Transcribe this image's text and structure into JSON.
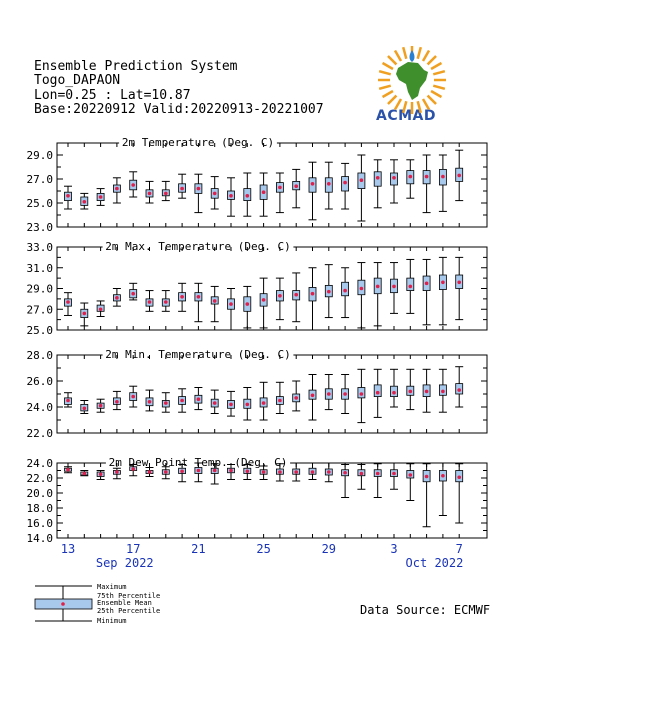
{
  "header": {
    "line1": "Ensemble Prediction System",
    "line2": "Togo_DAPAON",
    "line3": "Lon=0.25 : Lat=10.87",
    "line4": "Base:20220912 Valid:20220913-20221007"
  },
  "logo": {
    "text": "ACMAD",
    "icon": "africa-sun-logo-icon"
  },
  "source": "Data Source: ECMWF",
  "legend": {
    "maximum": "Maximum",
    "p75": "75th Percentile",
    "mean": "Ensemble Mean",
    "p25": "25th Percentile",
    "minimum": "Minimum"
  },
  "colors": {
    "box": "#a8c8ec",
    "mean": "#e0204a",
    "axis": "#000000",
    "date": "#1a34b8"
  },
  "x_axis": {
    "ticks": [
      {
        "day": 1,
        "label": "13"
      },
      {
        "day": 5,
        "label": "17"
      },
      {
        "day": 9,
        "label": "21"
      },
      {
        "day": 13,
        "label": "25"
      },
      {
        "day": 17,
        "label": "29"
      },
      {
        "day": 21,
        "label": "3"
      },
      {
        "day": 25,
        "label": "7"
      }
    ],
    "months": [
      {
        "day": 3.5,
        "label": "Sep 2022"
      },
      {
        "day": 22.5,
        "label": "Oct 2022"
      }
    ]
  },
  "chart_data": [
    {
      "type": "boxplot",
      "title": "2m Temperature (Deg. C)",
      "ylim": [
        23.0,
        30.0
      ],
      "yticks": [
        "23.0",
        "25.0",
        "27.0",
        "29.0"
      ],
      "x": [
        "2022-09-13",
        "2022-09-14",
        "2022-09-15",
        "2022-09-16",
        "2022-09-17",
        "2022-09-18",
        "2022-09-19",
        "2022-09-20",
        "2022-09-21",
        "2022-09-22",
        "2022-09-23",
        "2022-09-24",
        "2022-09-25",
        "2022-09-26",
        "2022-09-27",
        "2022-09-28",
        "2022-09-29",
        "2022-09-30",
        "2022-10-01",
        "2022-10-02",
        "2022-10-03",
        "2022-10-04",
        "2022-10-05",
        "2022-10-06",
        "2022-10-07"
      ],
      "min": [
        24.5,
        24.5,
        24.8,
        25.0,
        25.5,
        25.0,
        25.2,
        25.4,
        24.2,
        24.5,
        23.9,
        23.9,
        23.9,
        24.2,
        24.6,
        23.6,
        24.5,
        24.5,
        23.5,
        24.6,
        25.0,
        25.4,
        24.2,
        24.3,
        25.2
      ],
      "p25": [
        25.2,
        24.8,
        25.2,
        25.9,
        26.1,
        25.5,
        25.6,
        25.9,
        25.8,
        25.4,
        25.3,
        25.2,
        25.3,
        25.9,
        26.1,
        25.9,
        25.9,
        26.0,
        26.2,
        26.4,
        26.5,
        26.6,
        26.6,
        26.5,
        26.8
      ],
      "mean": [
        25.6,
        25.1,
        25.5,
        26.2,
        26.5,
        25.8,
        25.8,
        26.2,
        26.2,
        25.8,
        25.6,
        25.6,
        25.9,
        26.3,
        26.4,
        26.6,
        26.6,
        26.7,
        26.9,
        27.1,
        27.1,
        27.2,
        27.2,
        27.2,
        27.3
      ],
      "p75": [
        25.9,
        25.5,
        25.8,
        26.5,
        26.9,
        26.1,
        26.1,
        26.6,
        26.6,
        26.2,
        26.0,
        26.2,
        26.5,
        26.7,
        26.8,
        27.1,
        27.1,
        27.2,
        27.5,
        27.6,
        27.5,
        27.7,
        27.7,
        27.8,
        27.9
      ],
      "max": [
        26.4,
        25.8,
        26.2,
        27.1,
        27.6,
        26.8,
        26.8,
        27.4,
        27.4,
        27.2,
        27.1,
        27.5,
        27.5,
        27.5,
        27.8,
        28.4,
        28.4,
        28.3,
        29.0,
        28.6,
        28.6,
        28.6,
        29.0,
        29.0,
        29.4
      ]
    },
    {
      "type": "boxplot",
      "title": "2m Max. Temperature (Deg. C)",
      "ylim": [
        25.0,
        33.0
      ],
      "yticks": [
        "25.0",
        "27.0",
        "29.0",
        "31.0",
        "33.0"
      ],
      "min": [
        26.4,
        25.4,
        26.3,
        27.3,
        27.9,
        26.8,
        26.8,
        26.8,
        25.8,
        25.8,
        25.0,
        25.2,
        25.2,
        26.0,
        25.8,
        25.0,
        26.2,
        26.2,
        25.2,
        25.4,
        26.6,
        26.6,
        25.5,
        25.5,
        26.0
      ],
      "p25": [
        27.3,
        26.2,
        26.8,
        27.8,
        28.1,
        27.3,
        27.3,
        27.8,
        27.8,
        27.5,
        27.0,
        26.8,
        27.3,
        27.8,
        27.9,
        27.8,
        28.2,
        28.3,
        28.4,
        28.5,
        28.6,
        28.8,
        28.8,
        28.9,
        29.0
      ],
      "mean": [
        27.7,
        26.6,
        27.0,
        28.1,
        28.5,
        27.7,
        27.7,
        28.2,
        28.2,
        27.8,
        27.5,
        27.5,
        27.9,
        28.3,
        28.4,
        28.5,
        28.7,
        28.8,
        29.0,
        29.2,
        29.2,
        29.2,
        29.5,
        29.6,
        29.6
      ],
      "p75": [
        28.0,
        27.0,
        27.4,
        28.4,
        28.9,
        28.0,
        28.0,
        28.6,
        28.6,
        28.2,
        28.0,
        28.2,
        28.5,
        28.8,
        28.8,
        29.1,
        29.3,
        29.6,
        29.8,
        30.0,
        29.9,
        30.0,
        30.2,
        30.3,
        30.3
      ],
      "max": [
        28.6,
        27.6,
        27.8,
        29.0,
        29.5,
        28.8,
        28.8,
        29.5,
        29.5,
        29.2,
        29.0,
        29.2,
        30.0,
        30.0,
        30.5,
        31.0,
        31.3,
        31.0,
        31.5,
        31.5,
        31.5,
        31.8,
        31.8,
        32.0,
        32.0
      ]
    },
    {
      "type": "boxplot",
      "title": "2m Min. Temperature (Deg. C)",
      "ylim": [
        22.0,
        28.0
      ],
      "yticks": [
        "22.0",
        "24.0",
        "26.0",
        "28.0"
      ],
      "min": [
        24.0,
        23.5,
        23.6,
        23.8,
        24.0,
        23.7,
        23.6,
        23.6,
        23.8,
        23.5,
        23.3,
        23.0,
        23.0,
        23.5,
        23.7,
        23.0,
        23.8,
        23.5,
        22.8,
        23.2,
        24.0,
        23.8,
        23.6,
        23.6,
        24.0
      ],
      "p25": [
        24.2,
        23.7,
        23.9,
        24.2,
        24.5,
        24.1,
        24.0,
        24.2,
        24.3,
        24.0,
        23.9,
        23.9,
        24.0,
        24.2,
        24.4,
        24.6,
        24.6,
        24.6,
        24.7,
        24.8,
        24.8,
        24.9,
        24.8,
        24.9,
        25.0
      ],
      "mean": [
        24.5,
        23.9,
        24.1,
        24.4,
        24.8,
        24.4,
        24.3,
        24.5,
        24.6,
        24.3,
        24.2,
        24.2,
        24.3,
        24.5,
        24.7,
        24.9,
        25.0,
        25.0,
        25.0,
        25.1,
        25.1,
        25.2,
        25.2,
        25.2,
        25.3
      ],
      "p75": [
        24.7,
        24.2,
        24.3,
        24.7,
        25.1,
        24.7,
        24.5,
        24.8,
        24.9,
        24.6,
        24.5,
        24.6,
        24.7,
        24.8,
        25.0,
        25.3,
        25.4,
        25.4,
        25.5,
        25.7,
        25.6,
        25.6,
        25.7,
        25.7,
        25.8
      ],
      "max": [
        25.1,
        24.5,
        24.6,
        25.2,
        25.6,
        25.3,
        25.1,
        25.4,
        25.5,
        25.3,
        25.2,
        25.5,
        25.9,
        25.9,
        26.0,
        26.5,
        26.5,
        26.5,
        26.9,
        26.9,
        26.9,
        26.9,
        26.9,
        26.9,
        27.1
      ]
    },
    {
      "type": "boxplot",
      "title": "2m Dew Point Temp. (Deg. C)",
      "ylim": [
        14.0,
        24.0
      ],
      "yticks": [
        "14.0",
        "16.0",
        "18.0",
        "20.0",
        "22.0",
        "24.0"
      ],
      "min": [
        22.7,
        22.3,
        21.8,
        21.9,
        22.3,
        22.2,
        21.9,
        21.5,
        21.5,
        21.2,
        21.8,
        21.8,
        21.8,
        21.6,
        21.6,
        21.8,
        21.5,
        19.4,
        20.5,
        19.4,
        20.5,
        19.0,
        15.5,
        17.0,
        16.0
      ],
      "p25": [
        22.9,
        22.4,
        22.2,
        22.5,
        23.0,
        22.6,
        22.5,
        22.6,
        22.6,
        22.6,
        22.7,
        22.6,
        22.5,
        22.5,
        22.5,
        22.5,
        22.4,
        22.3,
        22.3,
        22.2,
        22.2,
        22.0,
        21.5,
        21.6,
        21.5
      ],
      "mean": [
        23.1,
        22.6,
        22.5,
        22.8,
        23.2,
        22.8,
        22.8,
        22.9,
        23.0,
        23.0,
        23.0,
        22.9,
        22.8,
        22.8,
        22.8,
        22.8,
        22.8,
        22.7,
        22.6,
        22.6,
        22.6,
        22.4,
        22.2,
        22.3,
        22.1
      ],
      "p75": [
        23.3,
        22.8,
        22.8,
        23.0,
        23.5,
        23.0,
        23.1,
        23.3,
        23.4,
        23.3,
        23.3,
        23.3,
        23.1,
        23.2,
        23.2,
        23.3,
        23.2,
        23.1,
        23.1,
        23.1,
        23.1,
        23.0,
        23.0,
        23.0,
        23.0
      ],
      "max": [
        23.5,
        23.0,
        23.0,
        23.3,
        23.8,
        23.4,
        23.5,
        23.8,
        24.0,
        23.9,
        23.8,
        23.8,
        23.6,
        23.9,
        24.0,
        24.0,
        24.0,
        23.8,
        23.8,
        23.9,
        24.0,
        23.9,
        23.9,
        24.0,
        23.9
      ]
    }
  ]
}
